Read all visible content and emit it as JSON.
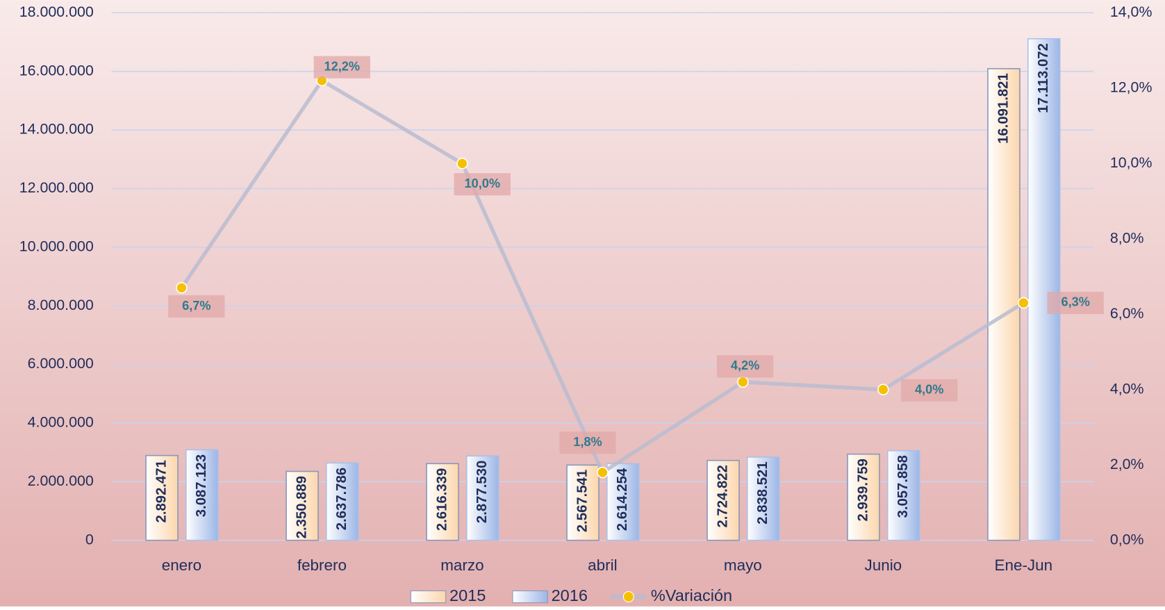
{
  "chart_data": {
    "type": "bar",
    "categories": [
      "enero",
      "febrero",
      "marzo",
      "abril",
      "mayo",
      "Junio",
      "Ene-Jun"
    ],
    "series": [
      {
        "name": "2015",
        "color": "#fde3c8",
        "values": [
          2892471,
          2350889,
          2616339,
          2567541,
          2724822,
          2939759,
          16091821
        ],
        "value_labels": [
          "2.892.471",
          "2.350.889",
          "2.616.339",
          "2.567.541",
          "2.724.822",
          "2.939.759",
          "16.091.821"
        ]
      },
      {
        "name": "2016",
        "color": "#a9c0ea",
        "values": [
          3087123,
          2637786,
          2877530,
          2614254,
          2838521,
          3057858,
          17113072
        ],
        "value_labels": [
          "3.087.123",
          "2.637.786",
          "2.877.530",
          "2.614.254",
          "2.838.521",
          "3.057.858",
          "17.113.072"
        ]
      },
      {
        "name": "%Variación",
        "type": "line",
        "axis": "y2",
        "color": "#b8bcd0",
        "marker_color": "#f5c000",
        "values": [
          6.7,
          12.2,
          10.0,
          1.8,
          4.2,
          4.0,
          6.3
        ],
        "value_labels": [
          "6,7%",
          "12,2%",
          "10,0%",
          "1,8%",
          "4,2%",
          "4,0%",
          "6,3%"
        ]
      }
    ],
    "ylim": [
      0,
      18000000
    ],
    "yticks": [
      0,
      {
        "value": 2000000,
        "label": "2.000.000"
      },
      {
        "value": 4000000,
        "label": "4.000.000"
      },
      {
        "value": 6000000,
        "label": "6.000.000"
      },
      {
        "value": 8000000,
        "label": "8.000.000"
      },
      {
        "value": 10000000,
        "label": "10.000.000"
      },
      {
        "value": 12000000,
        "label": "12.000.000"
      },
      {
        "value": 14000000,
        "label": "14.000.000"
      },
      {
        "value": 16000000,
        "label": "16.000.000"
      },
      {
        "value": 18000000,
        "label": "18.000.000"
      }
    ],
    "y2lim": [
      0,
      14
    ],
    "y2ticks": [
      {
        "value": 0,
        "label": "0,0%"
      },
      {
        "value": 2,
        "label": "2,0%"
      },
      {
        "value": 4,
        "label": "4,0%"
      },
      {
        "value": 6,
        "label": "6,0%"
      },
      {
        "value": 8,
        "label": "8,0%"
      },
      {
        "value": 10,
        "label": "10,0%"
      },
      {
        "value": 12,
        "label": "12,0%"
      },
      {
        "value": 14,
        "label": "14,0%"
      }
    ],
    "grid": true,
    "legend": "bottom"
  }
}
